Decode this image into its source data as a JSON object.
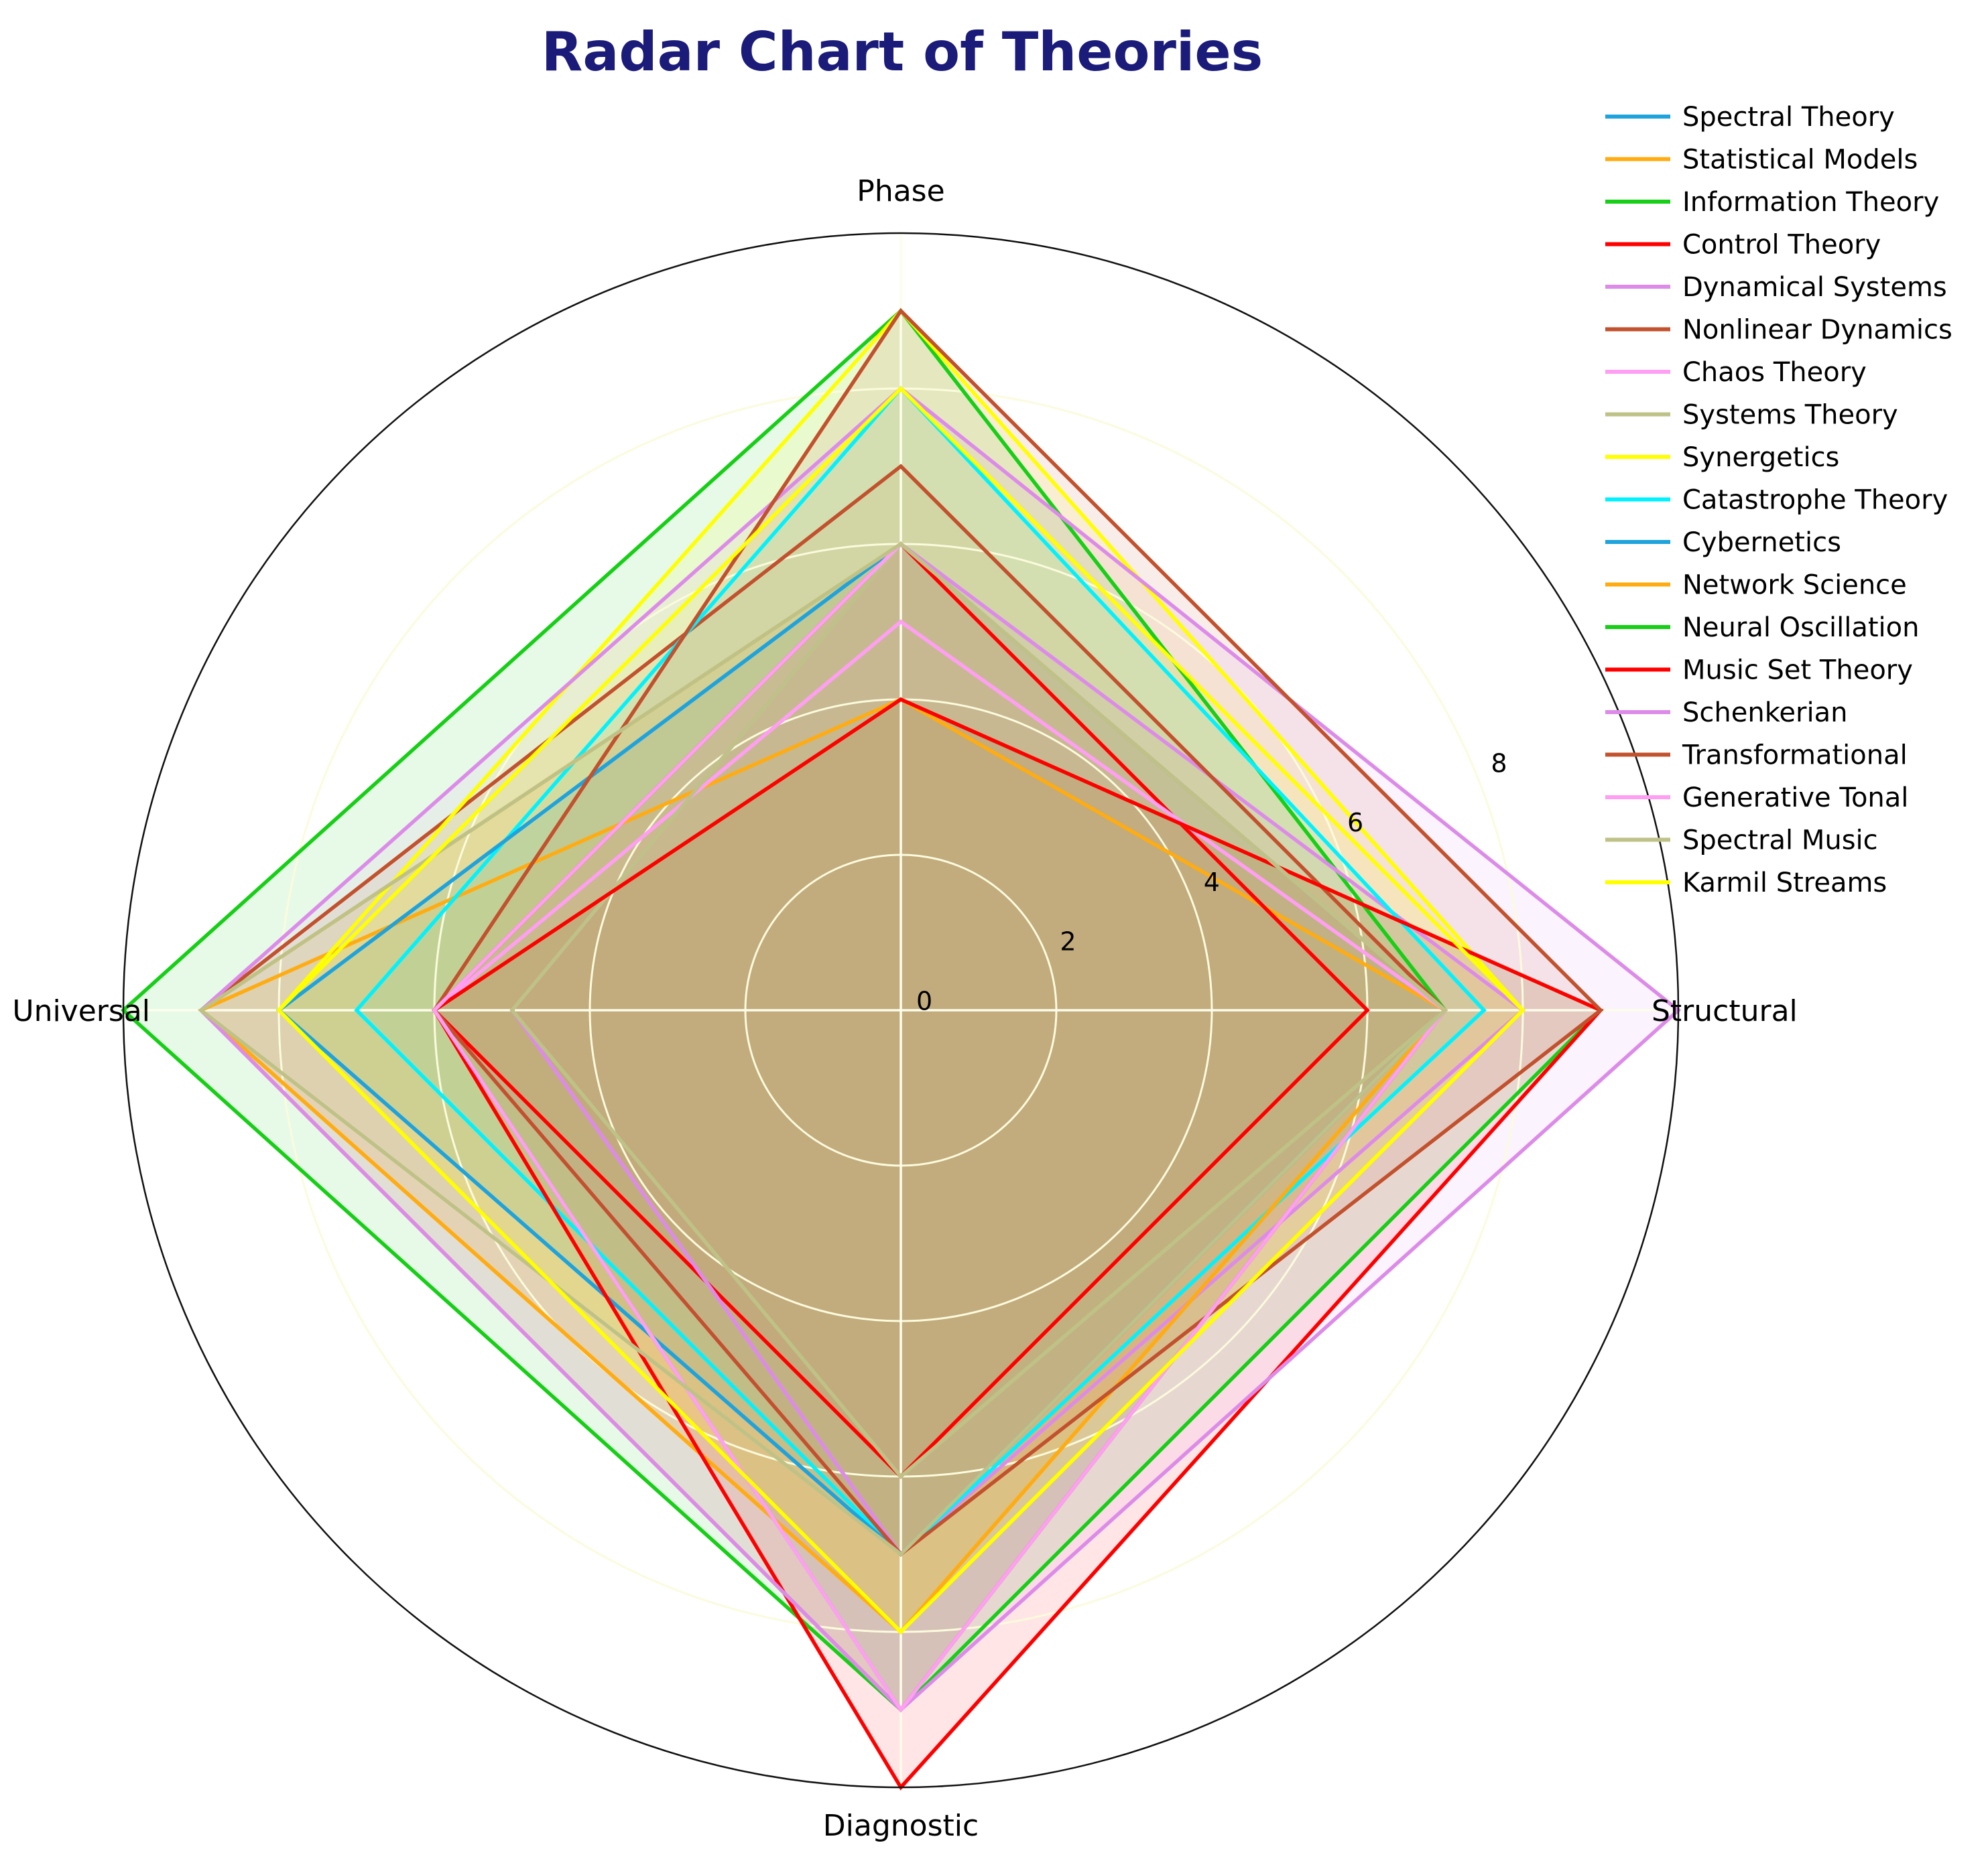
{
  "title": {
    "text": "Radar Chart of Theories",
    "color": "#1b1b7a"
  },
  "chart_data": {
    "type": "radar",
    "categories": [
      "Phase",
      "Structural",
      "Diagnostic",
      "Universal"
    ],
    "r_ticks": [
      0,
      2,
      4,
      6,
      8
    ],
    "r_max": 10,
    "grid": true,
    "legend_position": "upper right",
    "grid_color": "#fbfbdd",
    "outer_circle_color": "#111111",
    "fill_opacity": 0.1,
    "series": [
      {
        "name": "Spectral Theory",
        "color": "#1FA3DC",
        "values": [
          6,
          7,
          7,
          8
        ]
      },
      {
        "name": "Statistical Models",
        "color": "#FFAC12",
        "values": [
          4,
          7,
          8,
          9
        ]
      },
      {
        "name": "Information Theory",
        "color": "#17CF17",
        "values": [
          9,
          7,
          9,
          10
        ]
      },
      {
        "name": "Control Theory",
        "color": "#FF0000",
        "values": [
          6,
          6,
          6,
          6
        ]
      },
      {
        "name": "Dynamical Systems",
        "color": "#DC8CE8",
        "values": [
          6,
          8,
          7,
          5
        ]
      },
      {
        "name": "Nonlinear Dynamics",
        "color": "#C2512E",
        "values": [
          7,
          7,
          9,
          9
        ]
      },
      {
        "name": "Chaos Theory",
        "color": "#FF9FF3",
        "values": [
          5,
          7,
          7,
          6
        ]
      },
      {
        "name": "Systems Theory",
        "color": "#BFC287",
        "values": [
          6,
          7,
          6,
          5
        ]
      },
      {
        "name": "Synergetics",
        "color": "#FFFF00",
        "values": [
          9,
          8,
          8,
          8
        ]
      },
      {
        "name": "Catastrophe Theory",
        "color": "#00F2FF",
        "values": [
          8,
          7.5,
          7,
          7
        ]
      },
      {
        "name": "Cybernetics",
        "color": "#1FA3DC",
        "values": [
          6,
          7,
          7,
          8
        ]
      },
      {
        "name": "Network Science",
        "color": "#FFAC12",
        "values": [
          6,
          7,
          8,
          9
        ]
      },
      {
        "name": "Neural Oscillation",
        "color": "#17CF17",
        "values": [
          4,
          9,
          9,
          6
        ]
      },
      {
        "name": "Music Set Theory",
        "color": "#FF0000",
        "values": [
          4,
          9,
          10,
          6
        ]
      },
      {
        "name": "Schenkerian",
        "color": "#DC8CE8",
        "values": [
          8,
          10,
          9,
          9
        ]
      },
      {
        "name": "Transformational",
        "color": "#C2512E",
        "values": [
          9,
          9,
          7,
          6
        ]
      },
      {
        "name": "Generative Tonal",
        "color": "#FF9FF3",
        "values": [
          6,
          7,
          9,
          6
        ]
      },
      {
        "name": "Spectral Music",
        "color": "#BFC287",
        "values": [
          6,
          7,
          7,
          9
        ]
      },
      {
        "name": "Karmil Streams",
        "color": "#FFFF00",
        "values": [
          8,
          8,
          8,
          8
        ]
      }
    ]
  }
}
